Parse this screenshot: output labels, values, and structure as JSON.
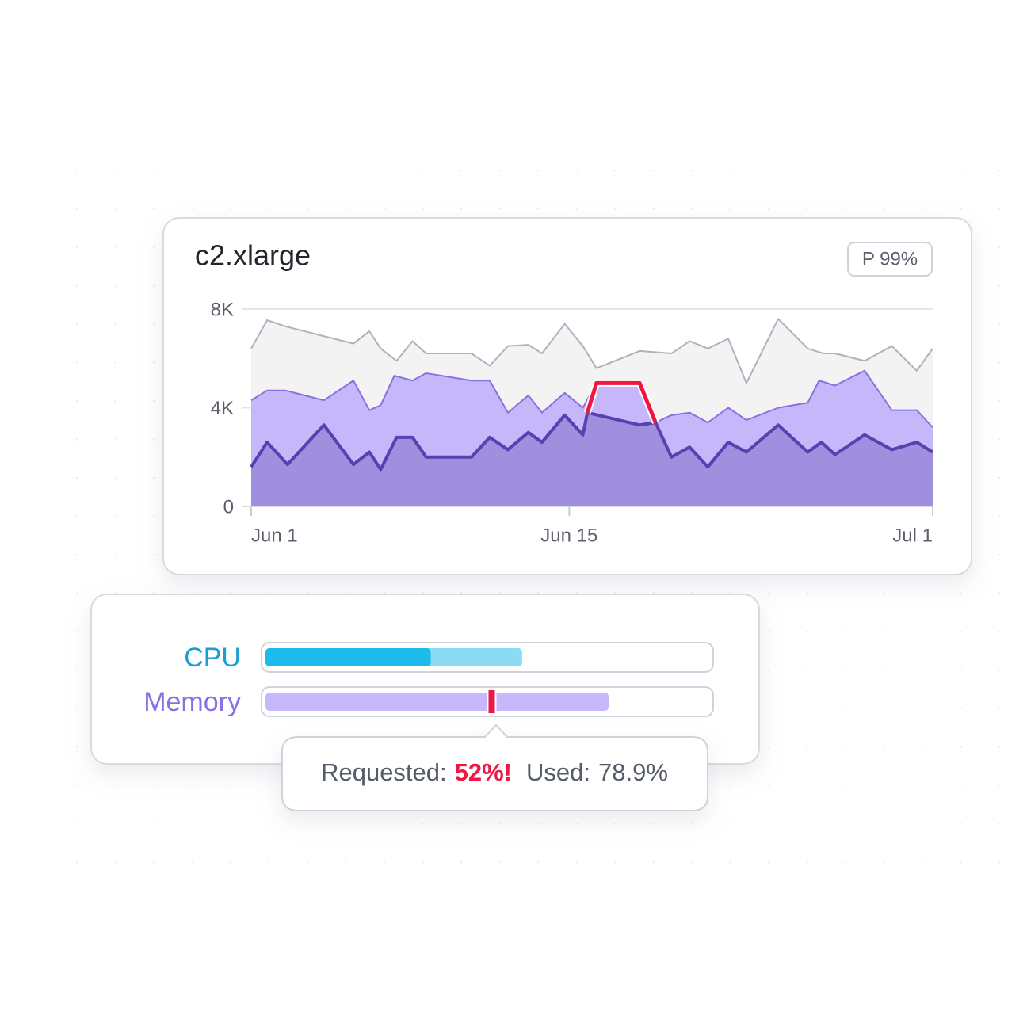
{
  "chart_data": {
    "type": "area",
    "title": "c2.xlarge",
    "badge": "P 99%",
    "xlim": [
      0,
      30
    ],
    "xticks": [
      {
        "value": 0,
        "label": "Jun 1"
      },
      {
        "value": 14,
        "label": "Jun 15"
      },
      {
        "value": 30,
        "label": "Jul 1"
      }
    ],
    "ylim": [
      0,
      8000
    ],
    "yticks": [
      0,
      {
        "value": 4000,
        "label": "4K"
      },
      {
        "value": 8000,
        "label": "8K"
      }
    ],
    "grid": true,
    "series": [
      {
        "color": "#aeb2bf",
        "fill": "#f3f3f4",
        "width": 2,
        "x": [
          0,
          0.7,
          1.5,
          3.2,
          4.5,
          5.2,
          5.7,
          6.4,
          7.1,
          7.7,
          9.7,
          10.5,
          11.3,
          12.2,
          12.8,
          13.8,
          14.6,
          15.2,
          17.1,
          18.5,
          19.3,
          20.1,
          21.0,
          21.8,
          23.2,
          24.5,
          25.2,
          25.7,
          27.0,
          28.2,
          29.3,
          30
        ],
        "values": [
          6400,
          7550,
          7300,
          6900,
          6600,
          7100,
          6400,
          5900,
          6700,
          6200,
          6200,
          5700,
          6500,
          6550,
          6200,
          7400,
          6500,
          5600,
          6300,
          6200,
          6700,
          6400,
          6800,
          5000,
          7600,
          6400,
          6200,
          6200,
          5900,
          6500,
          5500,
          6400
        ]
      },
      {
        "color": "#8a70e0",
        "fill": "#c6b7fb",
        "width": 2,
        "x": [
          0,
          0.7,
          1.5,
          3.2,
          4.5,
          5.2,
          5.7,
          6.3,
          7.1,
          7.7,
          9.7,
          10.5,
          11.3,
          12.2,
          12.8,
          13.8,
          14.6,
          15.2,
          17.1,
          17.8,
          18.5,
          19.3,
          20.1,
          21.0,
          21.8,
          23.2,
          24.5,
          25.0,
          25.7,
          27.0,
          28.2,
          29.3,
          30
        ],
        "values": [
          4300,
          4700,
          4700,
          4300,
          5100,
          3900,
          4100,
          5300,
          5100,
          5400,
          5100,
          5100,
          3800,
          4500,
          3800,
          4600,
          4000,
          5000,
          5000,
          3400,
          3700,
          3800,
          3400,
          4000,
          3500,
          4000,
          4200,
          5100,
          4900,
          5500,
          3900,
          3900,
          3200
        ]
      },
      {
        "color": "#5b3fb0",
        "fill": "#a08fdf",
        "width": 4,
        "x": [
          0,
          0.7,
          1.6,
          3.2,
          4.5,
          5.2,
          5.7,
          6.4,
          7.1,
          7.7,
          9.7,
          10.5,
          11.3,
          12.2,
          12.8,
          13.8,
          14.6,
          14.8,
          17.1,
          17.8,
          18.5,
          19.3,
          20.1,
          21.0,
          21.8,
          23.2,
          24.5,
          25.1,
          25.7,
          27.0,
          28.2,
          29.3,
          30
        ],
        "values": [
          1600,
          2600,
          1700,
          3300,
          1700,
          2200,
          1500,
          2800,
          2800,
          2000,
          2000,
          2800,
          2300,
          3000,
          2600,
          3700,
          2900,
          3800,
          3300,
          3400,
          2000,
          2400,
          1600,
          2600,
          2200,
          3300,
          2200,
          2600,
          2100,
          2900,
          2300,
          2600,
          2200
        ]
      },
      {
        "color": "#f0163f",
        "width": 5,
        "x": [
          14.8,
          15.2,
          17.1,
          17.8
        ],
        "values": [
          3800,
          5000,
          5000,
          3400
        ]
      }
    ]
  },
  "resources": {
    "rows": [
      {
        "label": "CPU",
        "color": "#1a9fd0",
        "requested": 38,
        "used": 59
      },
      {
        "label": "Memory",
        "color": "#8b6fe6",
        "requested": 52,
        "used": 78.9
      }
    ]
  },
  "tooltip": {
    "requested_label": "Requested:",
    "requested_text": "52%!",
    "used_label": "Used:",
    "used_text": "78.9%"
  }
}
